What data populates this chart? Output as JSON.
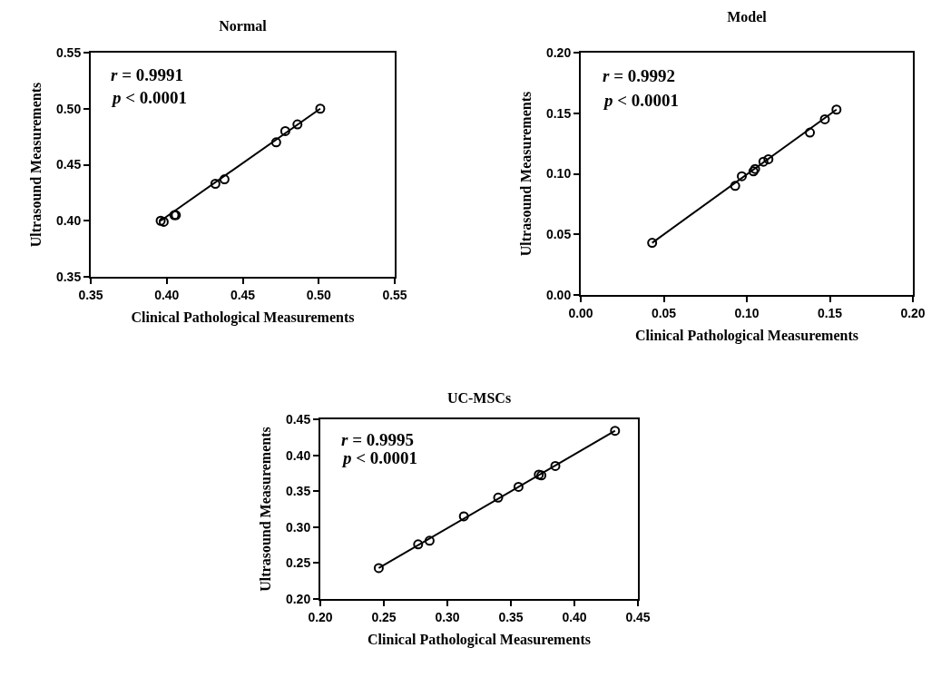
{
  "chart_data": [
    {
      "type": "scatter",
      "title": "Normal",
      "xlabel": "Clinical Pathological Measurements",
      "ylabel": "Ultrasound Measurements",
      "xlim": [
        0.35,
        0.55
      ],
      "xticks": [
        {
          "value": 0.35,
          "label": "0.35"
        },
        {
          "value": 0.4,
          "label": "0.40"
        },
        {
          "value": 0.45,
          "label": "0.45"
        },
        {
          "value": 0.5,
          "label": "0.50"
        },
        {
          "value": 0.55,
          "label": "0.55"
        }
      ],
      "ylim": [
        0.35,
        0.55
      ],
      "yticks": [
        {
          "value": 0.35,
          "label": "0.35"
        },
        {
          "value": 0.4,
          "label": "0.40"
        },
        {
          "value": 0.45,
          "label": "0.45"
        },
        {
          "value": 0.5,
          "label": "0.50"
        },
        {
          "value": 0.55,
          "label": "0.55"
        }
      ],
      "grid": false,
      "annotations": [
        "r = 0.9991",
        "p < 0.0001"
      ],
      "series": [
        {
          "marker": "circle",
          "color": "#000000",
          "x": [
            0.396,
            0.398,
            0.405,
            0.406,
            0.432,
            0.438,
            0.472,
            0.478,
            0.486,
            0.501
          ],
          "values": [
            0.4,
            0.399,
            0.405,
            0.405,
            0.433,
            0.437,
            0.47,
            0.48,
            0.486,
            0.5
          ]
        },
        {
          "type": "line",
          "marker": "none",
          "color": "#000000",
          "x": [
            0.396,
            0.501
          ],
          "values": [
            0.4,
            0.5
          ]
        }
      ]
    },
    {
      "type": "scatter",
      "title": "Model",
      "xlabel": "Clinical Pathological Measurements",
      "ylabel": "Ultrasound Measurements",
      "xlim": [
        0,
        0.2
      ],
      "xticks": [
        {
          "value": 0,
          "label": "0.00"
        },
        {
          "value": 0.05,
          "label": "0.05"
        },
        {
          "value": 0.1,
          "label": "0.10"
        },
        {
          "value": 0.15,
          "label": "0.15"
        },
        {
          "value": 0.2,
          "label": "0.20"
        }
      ],
      "ylim": [
        0,
        0.2
      ],
      "yticks": [
        {
          "value": 0,
          "label": "0.00"
        },
        {
          "value": 0.05,
          "label": "0.05"
        },
        {
          "value": 0.1,
          "label": "0.10"
        },
        {
          "value": 0.15,
          "label": "0.15"
        },
        {
          "value": 0.2,
          "label": "0.20"
        }
      ],
      "grid": false,
      "annotations": [
        "r = 0.9992",
        "p < 0.0001"
      ],
      "series": [
        {
          "marker": "circle",
          "color": "#000000",
          "x": [
            0.043,
            0.093,
            0.097,
            0.104,
            0.105,
            0.11,
            0.113,
            0.138,
            0.147,
            0.154
          ],
          "values": [
            0.043,
            0.09,
            0.098,
            0.102,
            0.104,
            0.11,
            0.112,
            0.134,
            0.145,
            0.153
          ]
        },
        {
          "type": "line",
          "marker": "none",
          "color": "#000000",
          "x": [
            0.043,
            0.154
          ],
          "values": [
            0.043,
            0.153
          ]
        }
      ]
    },
    {
      "type": "scatter",
      "title": "UC-MSCs",
      "xlabel": "Clinical Pathological Measurements",
      "ylabel": "Ultrasound Measurements",
      "xlim": [
        0.2,
        0.45
      ],
      "xticks": [
        {
          "value": 0.2,
          "label": "0.20"
        },
        {
          "value": 0.25,
          "label": "0.25"
        },
        {
          "value": 0.3,
          "label": "0.30"
        },
        {
          "value": 0.35,
          "label": "0.35"
        },
        {
          "value": 0.4,
          "label": "0.40"
        },
        {
          "value": 0.45,
          "label": "0.45"
        }
      ],
      "ylim": [
        0.2,
        0.45
      ],
      "yticks": [
        {
          "value": 0.2,
          "label": "0.20"
        },
        {
          "value": 0.25,
          "label": "0.25"
        },
        {
          "value": 0.3,
          "label": "0.30"
        },
        {
          "value": 0.35,
          "label": "0.35"
        },
        {
          "value": 0.4,
          "label": "0.40"
        },
        {
          "value": 0.45,
          "label": "0.45"
        }
      ],
      "grid": false,
      "annotations": [
        "r = 0.9995",
        "p < 0.0001"
      ],
      "series": [
        {
          "marker": "circle",
          "color": "#000000",
          "x": [
            0.246,
            0.277,
            0.286,
            0.313,
            0.34,
            0.356,
            0.372,
            0.374,
            0.385,
            0.432
          ],
          "values": [
            0.243,
            0.276,
            0.281,
            0.315,
            0.341,
            0.356,
            0.373,
            0.372,
            0.385,
            0.434
          ]
        },
        {
          "type": "line",
          "marker": "none",
          "color": "#000000",
          "x": [
            0.246,
            0.432
          ],
          "values": [
            0.243,
            0.434
          ]
        }
      ]
    }
  ]
}
